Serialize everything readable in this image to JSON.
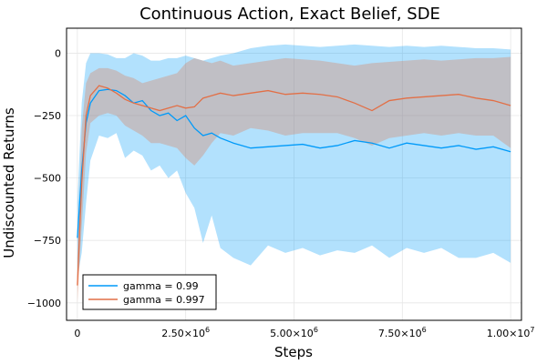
{
  "chart_data": {
    "type": "line",
    "title": "Continuous Action, Exact Belief, SDE",
    "xlabel": "Steps",
    "ylabel": "Undiscounted Returns",
    "xlim": [
      -250000,
      10250000
    ],
    "ylim": [
      -1070,
      100
    ],
    "x_ticks": [
      0,
      2500000,
      5000000,
      7500000,
      10000000
    ],
    "x_tick_labels": [
      {
        "mantissa": "0",
        "exp": ""
      },
      {
        "mantissa": "2.50×10",
        "exp": "6"
      },
      {
        "mantissa": "5.00×10",
        "exp": "6"
      },
      {
        "mantissa": "7.50×10",
        "exp": "6"
      },
      {
        "mantissa": "1.00×10",
        "exp": "7"
      }
    ],
    "y_ticks": [
      0,
      -250,
      -500,
      -750,
      -1000
    ],
    "y_tick_labels": [
      "0",
      "−250",
      "−500",
      "−750",
      "−1000"
    ],
    "grid": true,
    "legend_position": "bottom-left",
    "series": [
      {
        "name": "gamma = 0.99",
        "color": "#009af9",
        "x": [
          0,
          100000,
          200000,
          300000,
          500000,
          700000,
          900000,
          1100000,
          1300000,
          1500000,
          1700000,
          1900000,
          2100000,
          2300000,
          2500000,
          2700000,
          2900000,
          3100000,
          3300000,
          3600000,
          4000000,
          4400000,
          4800000,
          5200000,
          5600000,
          6000000,
          6400000,
          6800000,
          7200000,
          7600000,
          8000000,
          8400000,
          8800000,
          9200000,
          9600000,
          10000000
        ],
        "mean": [
          -740,
          -470,
          -280,
          -200,
          -150,
          -145,
          -150,
          -170,
          -200,
          -190,
          -230,
          -250,
          -240,
          -270,
          -250,
          -300,
          -330,
          -320,
          -340,
          -360,
          -380,
          -375,
          -370,
          -365,
          -380,
          -370,
          -350,
          -360,
          -380,
          -360,
          -370,
          -380,
          -370,
          -385,
          -375,
          -395
        ],
        "upper": [
          -600,
          -200,
          -40,
          0,
          0,
          -5,
          -20,
          -20,
          0,
          -10,
          -30,
          -30,
          -20,
          -20,
          -10,
          -20,
          -30,
          -20,
          -10,
          0,
          20,
          30,
          35,
          30,
          25,
          30,
          35,
          30,
          25,
          30,
          25,
          30,
          25,
          20,
          20,
          15
        ],
        "lower": [
          -900,
          -800,
          -600,
          -430,
          -330,
          -340,
          -320,
          -420,
          -390,
          -410,
          -470,
          -450,
          -500,
          -470,
          -560,
          -620,
          -760,
          -650,
          -780,
          -820,
          -850,
          -770,
          -800,
          -780,
          -810,
          -790,
          -800,
          -770,
          -820,
          -780,
          -800,
          -780,
          -820,
          -820,
          -800,
          -840
        ]
      },
      {
        "name": "gamma = 0.997",
        "color": "#e26f46",
        "x": [
          0,
          100000,
          200000,
          300000,
          500000,
          700000,
          900000,
          1100000,
          1300000,
          1500000,
          1700000,
          1900000,
          2100000,
          2300000,
          2500000,
          2700000,
          2900000,
          3100000,
          3300000,
          3600000,
          4000000,
          4400000,
          4800000,
          5200000,
          5600000,
          6000000,
          6400000,
          6800000,
          7200000,
          7600000,
          8000000,
          8400000,
          8800000,
          9200000,
          9600000,
          10000000
        ],
        "mean": [
          -930,
          -520,
          -250,
          -170,
          -130,
          -140,
          -160,
          -185,
          -200,
          -210,
          -220,
          -230,
          -220,
          -210,
          -220,
          -215,
          -180,
          -170,
          -160,
          -170,
          -160,
          -150,
          -165,
          -160,
          -165,
          -175,
          -200,
          -230,
          -190,
          -180,
          -175,
          -170,
          -165,
          -180,
          -190,
          -210
        ],
        "upper": [
          -820,
          -300,
          -120,
          -80,
          -60,
          -60,
          -70,
          -90,
          -100,
          -120,
          -110,
          -100,
          -90,
          -80,
          -40,
          -20,
          -30,
          -40,
          -30,
          -50,
          -40,
          -30,
          -20,
          -25,
          -30,
          -40,
          -50,
          -40,
          -35,
          -30,
          -25,
          -30,
          -25,
          -20,
          -20,
          -15
        ],
        "lower": [
          -1000,
          -700,
          -400,
          -280,
          -250,
          -240,
          -250,
          -290,
          -310,
          -330,
          -360,
          -360,
          -370,
          -380,
          -420,
          -450,
          -410,
          -360,
          -320,
          -330,
          -300,
          -310,
          -330,
          -320,
          -320,
          -320,
          -340,
          -370,
          -340,
          -330,
          -320,
          -330,
          -320,
          -330,
          -330,
          -380
        ]
      }
    ]
  }
}
